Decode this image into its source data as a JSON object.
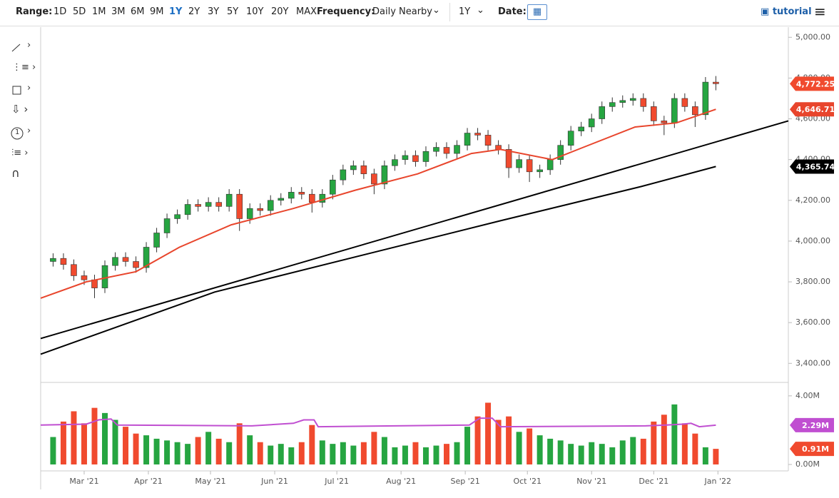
{
  "toolbar": {
    "range_label": "Range:",
    "ranges": [
      "1D",
      "5D",
      "1M",
      "3M",
      "6M",
      "9M",
      "1Y",
      "2Y",
      "3Y",
      "5Y",
      "10Y",
      "20Y",
      "MAX"
    ],
    "selected": "1Y",
    "frequency_label": "Frequency:",
    "frequency": "Daily Nearby",
    "period": "1Y",
    "date_label": "Date:",
    "tutorial": "tutorial"
  },
  "chart_data": {
    "type": "candlestick",
    "up_color": "#26a541",
    "down_color": "#f04a2e",
    "x": [
      44,
      49,
      54,
      59,
      64,
      69,
      74,
      79,
      84,
      89,
      94,
      99,
      104,
      109,
      114,
      119,
      124,
      129,
      134,
      139,
      144,
      149,
      154,
      159,
      164,
      169,
      174,
      179,
      184,
      189,
      194,
      199,
      204,
      209,
      214,
      219,
      224,
      229,
      234,
      239,
      244,
      249,
      254,
      259,
      264,
      269,
      274,
      279,
      284,
      289,
      294,
      299,
      304,
      309,
      314,
      319,
      324,
      329,
      334,
      339,
      344,
      349,
      354,
      359,
      364
    ],
    "open": [
      3900,
      3915,
      3885,
      3830,
      3810,
      3770,
      3880,
      3920,
      3900,
      3870,
      3970,
      4040,
      4110,
      4130,
      4180,
      4170,
      4190,
      4170,
      4230,
      4110,
      4160,
      4150,
      4200,
      4210,
      4240,
      4230,
      4190,
      4230,
      4300,
      4350,
      4370,
      4330,
      4280,
      4370,
      4400,
      4420,
      4390,
      4440,
      4460,
      4430,
      4470,
      4530,
      4520,
      4470,
      4450,
      4360,
      4400,
      4340,
      4350,
      4400,
      4470,
      4540,
      4560,
      4600,
      4660,
      4680,
      4690,
      4700,
      4660,
      4590,
      4580,
      4700,
      4660,
      4620,
      4780
    ],
    "high": [
      3940,
      3940,
      3910,
      3855,
      3835,
      3905,
      3945,
      3945,
      3925,
      3995,
      4065,
      4135,
      4155,
      4205,
      4205,
      4215,
      4215,
      4255,
      4255,
      4185,
      4185,
      4225,
      4235,
      4265,
      4265,
      4255,
      4255,
      4325,
      4375,
      4395,
      4395,
      4355,
      4395,
      4425,
      4445,
      4445,
      4465,
      4485,
      4485,
      4495,
      4555,
      4555,
      4545,
      4495,
      4475,
      4425,
      4425,
      4375,
      4425,
      4495,
      4565,
      4585,
      4625,
      4685,
      4705,
      4715,
      4725,
      4725,
      4685,
      4615,
      4725,
      4725,
      4685,
      4805,
      4810
    ],
    "low": [
      3875,
      3860,
      3805,
      3785,
      3720,
      3745,
      3855,
      3875,
      3845,
      3845,
      3945,
      4015,
      4085,
      4105,
      4145,
      4145,
      4145,
      4145,
      4050,
      4085,
      4125,
      4125,
      4175,
      4185,
      4205,
      4140,
      4165,
      4205,
      4275,
      4325,
      4305,
      4230,
      4255,
      4345,
      4375,
      4365,
      4365,
      4415,
      4405,
      4405,
      4445,
      4495,
      4445,
      4425,
      4310,
      4335,
      4290,
      4310,
      4325,
      4375,
      4445,
      4515,
      4535,
      4575,
      4635,
      4655,
      4665,
      4635,
      4565,
      4520,
      4555,
      4635,
      4560,
      4595,
      4740
    ],
    "close": [
      3915,
      3885,
      3830,
      3810,
      3770,
      3880,
      3920,
      3900,
      3870,
      3970,
      4040,
      4110,
      4130,
      4180,
      4170,
      4190,
      4170,
      4230,
      4110,
      4160,
      4150,
      4200,
      4210,
      4240,
      4230,
      4190,
      4230,
      4300,
      4350,
      4370,
      4330,
      4280,
      4370,
      4400,
      4420,
      4390,
      4440,
      4460,
      4430,
      4470,
      4530,
      4520,
      4470,
      4450,
      4360,
      4400,
      4340,
      4350,
      4400,
      4470,
      4540,
      4560,
      4600,
      4660,
      4680,
      4690,
      4700,
      4660,
      4590,
      4580,
      4700,
      4660,
      4620,
      4780,
      4772.25
    ],
    "volume": [
      1.6,
      2.5,
      3.1,
      2.4,
      3.3,
      3.0,
      2.6,
      2.2,
      1.8,
      1.7,
      1.5,
      1.4,
      1.3,
      1.2,
      1.6,
      1.9,
      1.5,
      1.3,
      2.4,
      1.7,
      1.3,
      1.1,
      1.2,
      1.0,
      1.3,
      2.3,
      1.4,
      1.2,
      1.3,
      1.1,
      1.3,
      1.9,
      1.6,
      1.0,
      1.1,
      1.3,
      1.0,
      1.1,
      1.2,
      1.3,
      2.2,
      2.8,
      3.6,
      2.6,
      2.8,
      1.9,
      2.1,
      1.7,
      1.5,
      1.4,
      1.2,
      1.1,
      1.3,
      1.2,
      1.0,
      1.4,
      1.6,
      1.5,
      2.5,
      2.9,
      3.5,
      2.4,
      1.8,
      1.0,
      0.91
    ],
    "overlays": [
      {
        "panel": "price",
        "color": "#e8452c",
        "x": [
          38,
          60,
          84,
          105,
          130,
          160,
          190,
          220,
          246,
          260,
          285,
          300,
          325,
          345,
          364
        ],
        "values": [
          3720,
          3800,
          3850,
          3970,
          4080,
          4160,
          4250,
          4330,
          4430,
          4450,
          4400,
          4460,
          4560,
          4580,
          4646.71
        ]
      },
      {
        "panel": "price",
        "color": "#000000",
        "x": [
          38,
          399
        ],
        "values": [
          3522,
          4590
        ]
      },
      {
        "panel": "price",
        "color": "#000000",
        "x": [
          38,
          122,
          260,
          328,
          364
        ],
        "values": [
          3445,
          3750,
          4100,
          4268,
          4365.74
        ]
      },
      {
        "panel": "volume",
        "color": "#c04fd1",
        "x": [
          38,
          60,
          66,
          72,
          75,
          140,
          160,
          165,
          170,
          172,
          245,
          250,
          256,
          260,
          330,
          340,
          348,
          352,
          356,
          364
        ],
        "values": [
          2.3,
          2.35,
          2.6,
          2.65,
          2.3,
          2.25,
          2.4,
          2.6,
          2.6,
          2.2,
          2.3,
          2.7,
          2.7,
          2.2,
          2.25,
          2.3,
          2.35,
          2.4,
          2.2,
          2.29
        ]
      }
    ],
    "xlim": [
      38,
      399
    ],
    "xticks": [
      {
        "value": 59,
        "label": "Mar '21"
      },
      {
        "value": 90,
        "label": "Apr '21"
      },
      {
        "value": 120,
        "label": "May '21"
      },
      {
        "value": 151,
        "label": "Jun '21"
      },
      {
        "value": 181,
        "label": "Jul '21"
      },
      {
        "value": 212,
        "label": "Aug '21"
      },
      {
        "value": 243,
        "label": "Sep '21"
      },
      {
        "value": 273,
        "label": "Oct '21"
      },
      {
        "value": 304,
        "label": "Nov '21"
      },
      {
        "value": 334,
        "label": "Dec '21"
      },
      {
        "value": 365,
        "label": "Jan '22"
      }
    ],
    "ylim": [
      3310,
      5050
    ],
    "yticks": [
      {
        "value": 3400,
        "label": "3,400.00"
      },
      {
        "value": 3600,
        "label": "3,600.00"
      },
      {
        "value": 3800,
        "label": "3,800.00"
      },
      {
        "value": 4000,
        "label": "4,000.00"
      },
      {
        "value": 4200,
        "label": "4,200.00"
      },
      {
        "value": 4400,
        "label": "4,400.00"
      },
      {
        "value": 4600,
        "label": "4,600.00"
      },
      {
        "value": 4800,
        "label": "4,800.00"
      },
      {
        "value": 5000,
        "label": "5,000.00"
      }
    ],
    "volume_ylim": [
      -0.375,
      4.7
    ],
    "volume_yticks": [
      {
        "value": 0,
        "label": "0.00M"
      },
      {
        "value": 4,
        "label": "4.00M"
      }
    ],
    "price_labels": [
      {
        "value": 4772.25,
        "label": "4,772.25",
        "color": "#f04a2e"
      },
      {
        "value": 4646.71,
        "label": "4,646.71",
        "color": "#e8452c"
      },
      {
        "value": 4365.74,
        "label": "4,365.74",
        "color": "#000000"
      }
    ],
    "volume_labels": [
      {
        "value": 2.29,
        "label": "2.29M",
        "color": "#c04fd1"
      },
      {
        "value": 0.91,
        "label": "0.91M",
        "color": "#f04a2e"
      }
    ],
    "grid": false
  }
}
